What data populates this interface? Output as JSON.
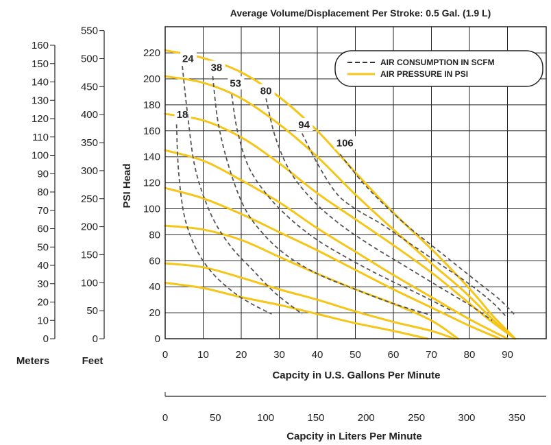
{
  "chart_data": {
    "type": "line",
    "title": "Average Volume/Displacement Per Stroke: 0.5 Gal. (1.9 L)",
    "xlabel": "Capcity in U.S. Gallons Per Minute",
    "ylabel": "PSI Head",
    "x2label": "Capcity in Liters Per Minute",
    "xlim": [
      0,
      95
    ],
    "ylim": [
      0,
      240
    ],
    "x_ticks": [
      0,
      10,
      20,
      30,
      40,
      50,
      60,
      70,
      80,
      90
    ],
    "y_ticks": [
      0,
      20,
      40,
      60,
      80,
      100,
      120,
      140,
      160,
      180,
      200,
      220
    ],
    "x2_ticks": [
      0,
      50,
      100,
      150,
      200,
      250,
      300,
      350
    ],
    "grid": true,
    "secondary_axes": {
      "meters": {
        "label": "Meters",
        "ticks": [
          0,
          10,
          20,
          30,
          40,
          50,
          60,
          70,
          80,
          90,
          100,
          110,
          120,
          130,
          140,
          150,
          160
        ]
      },
      "feet": {
        "label": "Feet",
        "ticks": [
          0,
          50,
          100,
          150,
          200,
          250,
          300,
          350,
          400,
          450,
          500,
          550
        ]
      }
    },
    "legend": {
      "position": "top-right",
      "items": [
        {
          "name": "AIR CONSUMPTION IN SCFM",
          "style": "dashed",
          "color": "#555555"
        },
        {
          "name": "AIR PRESSURE IN PSI",
          "style": "solid",
          "color": "#F5C518"
        }
      ]
    },
    "pressure_series": [
      {
        "x": [
          0,
          10,
          20,
          30,
          40,
          50,
          60,
          70,
          77,
          82,
          86,
          90,
          92
        ],
        "y": [
          222,
          216,
          205,
          186,
          160,
          128,
          97,
          69,
          48,
          32,
          18,
          6,
          0
        ]
      },
      {
        "x": [
          0,
          10,
          20,
          30,
          40,
          50,
          60,
          70,
          78,
          85,
          89,
          92
        ],
        "y": [
          202,
          197,
          185,
          165,
          140,
          111,
          84,
          58,
          38,
          18,
          7,
          0
        ]
      },
      {
        "x": [
          0,
          10,
          20,
          30,
          40,
          50,
          60,
          70,
          78,
          85,
          92
        ],
        "y": [
          173,
          168,
          155,
          135,
          112,
          92,
          72,
          51,
          32,
          15,
          0
        ]
      },
      {
        "x": [
          0,
          10,
          20,
          30,
          40,
          50,
          60,
          70,
          80,
          90
        ],
        "y": [
          145,
          137,
          122,
          105,
          85,
          67,
          49,
          32,
          15,
          0
        ]
      },
      {
        "x": [
          0,
          10,
          20,
          30,
          40,
          50,
          60,
          70,
          80,
          88
        ],
        "y": [
          116,
          108,
          96,
          82,
          68,
          53,
          38,
          24,
          10,
          0
        ]
      },
      {
        "x": [
          0,
          10,
          20,
          30,
          40,
          50,
          60,
          70,
          77
        ],
        "y": [
          87,
          84,
          76,
          63,
          50,
          38,
          27,
          14,
          0
        ]
      },
      {
        "x": [
          0,
          10,
          20,
          30,
          40,
          50,
          60,
          70,
          76
        ],
        "y": [
          58,
          55,
          47,
          38,
          30,
          21,
          13,
          6,
          0
        ]
      },
      {
        "x": [
          0,
          10,
          20,
          30,
          40,
          50,
          60,
          69
        ],
        "y": [
          43,
          39,
          32,
          26,
          19,
          12,
          6,
          0
        ]
      }
    ],
    "air_series": [
      {
        "name": "18",
        "label_at": [
          3,
          170
        ],
        "x": [
          3,
          3.5,
          5,
          8,
          12,
          17,
          22,
          28
        ],
        "y": [
          165,
          130,
          95,
          70,
          52,
          38,
          28,
          19
        ]
      },
      {
        "name": "24",
        "label_at": [
          4.5,
          213
        ],
        "x": [
          4.5,
          6,
          8,
          12,
          17,
          23,
          29,
          36
        ],
        "y": [
          210,
          170,
          130,
          96,
          72,
          53,
          35,
          19
        ]
      },
      {
        "name": "38",
        "label_at": [
          12,
          206
        ],
        "x": [
          12.5,
          14,
          17,
          21,
          26,
          32,
          40,
          50,
          60,
          70
        ],
        "y": [
          202,
          165,
          130,
          100,
          80,
          64,
          50,
          38,
          27,
          18
        ]
      },
      {
        "name": "53",
        "label_at": [
          17,
          194
        ],
        "x": [
          17.5,
          19,
          22,
          27,
          33,
          40,
          48,
          57,
          67,
          75
        ],
        "y": [
          188,
          160,
          132,
          110,
          92,
          76,
          62,
          48,
          34,
          22
        ]
      },
      {
        "name": "80",
        "label_at": [
          25,
          188
        ],
        "x": [
          26.5,
          29,
          33,
          39,
          46,
          54,
          63,
          72,
          80,
          86
        ],
        "y": [
          185,
          155,
          128,
          106,
          88,
          72,
          56,
          40,
          26,
          14
        ]
      },
      {
        "name": "94",
        "label_at": [
          35,
          162
        ],
        "x": [
          36,
          40,
          45,
          50,
          57,
          64,
          72,
          80,
          86,
          90
        ],
        "y": [
          158,
          135,
          112,
          100,
          88,
          74,
          58,
          42,
          28,
          16
        ]
      },
      {
        "name": "106",
        "label_at": [
          45,
          148
        ],
        "x": [
          46,
          52,
          58,
          64,
          70,
          76,
          82,
          88,
          92
        ],
        "y": [
          142,
          120,
          102,
          86,
          72,
          58,
          44,
          30,
          18
        ]
      }
    ]
  }
}
